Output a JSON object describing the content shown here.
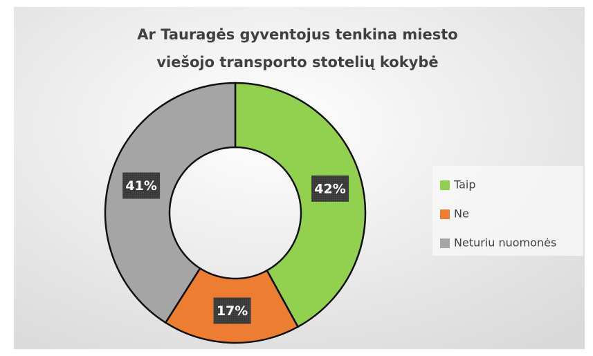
{
  "chart_data": {
    "type": "pie",
    "hole": true,
    "title": "Ar Tauragės gyventojus tenkina miesto viešojo transporto stotelių kokybė",
    "categories": [
      "Taip",
      "Ne",
      "Neturiu nuomonės"
    ],
    "values": [
      42,
      17,
      41
    ],
    "value_labels": [
      "42%",
      "17%",
      "41%"
    ],
    "colors": [
      "#92d050",
      "#ed7d31",
      "#a5a5a5"
    ],
    "legend": "right"
  }
}
